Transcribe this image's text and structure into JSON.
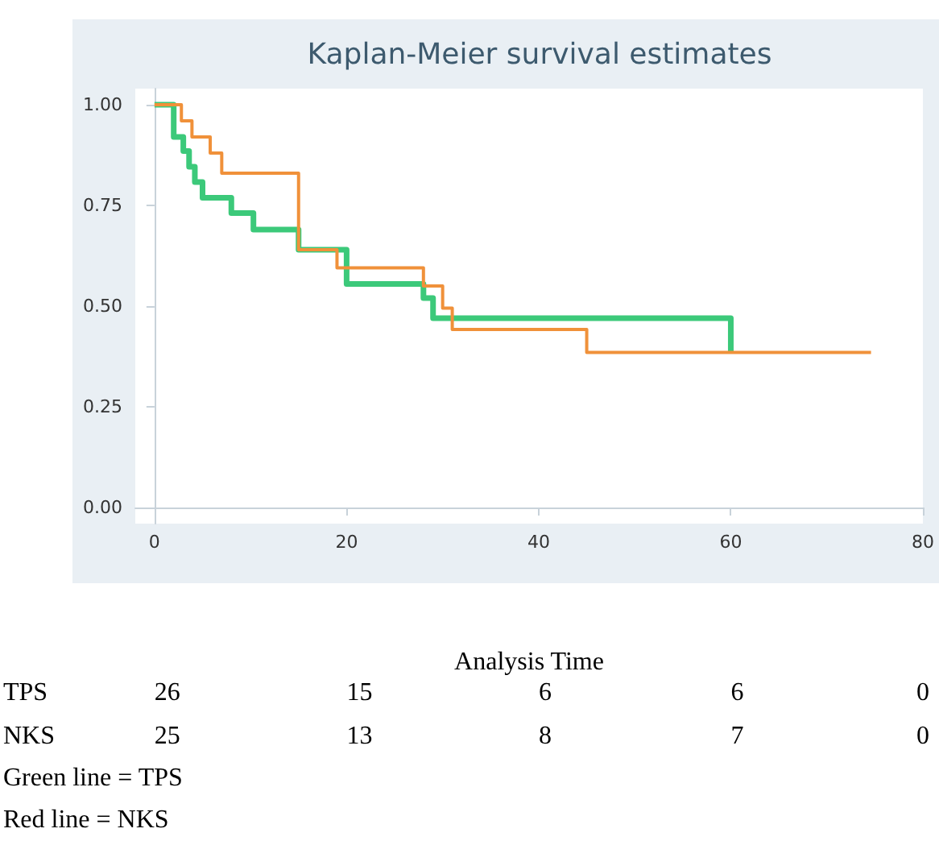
{
  "chart_data": {
    "type": "step",
    "title": "Kaplan-Meier survival estimates",
    "xlabel": "Analysis Time",
    "xlim": [
      -2,
      80
    ],
    "xticks": [
      0,
      20,
      40,
      60,
      80
    ],
    "ylim": [
      -0.04,
      1.04
    ],
    "yticks": [
      {
        "value": 0,
        "label": "0.00"
      },
      {
        "value": 0.25,
        "label": "0.25"
      },
      {
        "value": 0.5,
        "label": "0.50"
      },
      {
        "value": 0.75,
        "label": "0.75"
      },
      {
        "value": 1,
        "label": "1.00"
      }
    ],
    "marker": "none",
    "line_style": "solid",
    "series": [
      {
        "color": "#3cc97a",
        "x": [
          0,
          2,
          3,
          3.6,
          4.2,
          5,
          8,
          10.3,
          15,
          20,
          28,
          29,
          60
        ],
        "values": [
          1,
          0.92,
          0.885,
          0.846,
          0.808,
          0.769,
          0.731,
          0.69,
          0.64,
          0.555,
          0.52,
          0.47,
          0.385
        ]
      },
      {
        "color": "#f0913a",
        "x": [
          0,
          2.8,
          3.9,
          5.8,
          7,
          15,
          19,
          28,
          30,
          31,
          45,
          74.6
        ],
        "values": [
          1,
          0.96,
          0.92,
          0.88,
          0.83,
          0.64,
          0.595,
          0.55,
          0.495,
          0.442,
          0.385,
          0.385
        ]
      }
    ],
    "annotations": [
      "TPS",
      "26",
      "15",
      "6",
      "6",
      "0",
      "NKS",
      "25",
      "13",
      "8",
      "7",
      "0",
      "Green line = TPS",
      "Red line = NKS"
    ]
  }
}
